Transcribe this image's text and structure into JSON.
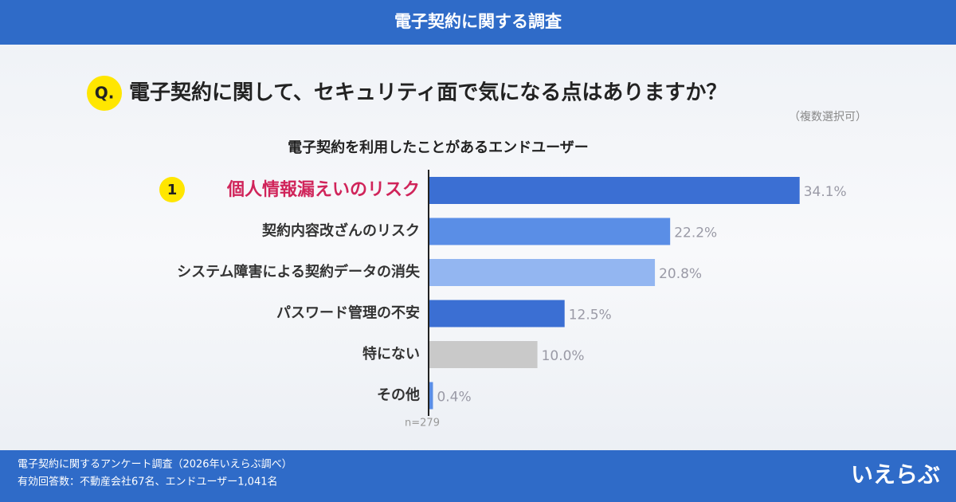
{
  "header": {
    "title": "電子契約に関する調査"
  },
  "question": {
    "badge": "Q.",
    "text": "電子契約に関して、セキュリティ面で気になる点はありますか？",
    "note": "（複数選択可）"
  },
  "chart_data": {
    "type": "bar",
    "orientation": "horizontal",
    "title": "電子契約を利用したことがあるエンドユーザー",
    "categories": [
      "個人情報漏えいのリスク",
      "契約内容改ざんのリスク",
      "システム障害による契約データの消失",
      "パスワード管理の不安",
      "特にない",
      "その他"
    ],
    "values": [
      34.1,
      22.2,
      20.8,
      12.5,
      10.0,
      0.4
    ],
    "value_labels": [
      "34.1%",
      "22.2%",
      "20.8%",
      "12.5%",
      "10.0%",
      "0.4%"
    ],
    "colors": [
      "#3b6fd3",
      "#5a8ee6",
      "#93b6f1",
      "#3b6fd3",
      "#c9c9c9",
      "#5a8ee6"
    ],
    "xlim": [
      0,
      35
    ],
    "highlight": {
      "index": 0,
      "rank": "1",
      "color": "#d0245a"
    },
    "sample_size": "n=279"
  },
  "footer": {
    "lines": [
      "電子契約に関するアンケート調査（2026年いえらぶ調べ）",
      "有効回答数：不動産会社67名、エンドユーザー1,041名"
    ],
    "logo": "いえらぶ"
  }
}
